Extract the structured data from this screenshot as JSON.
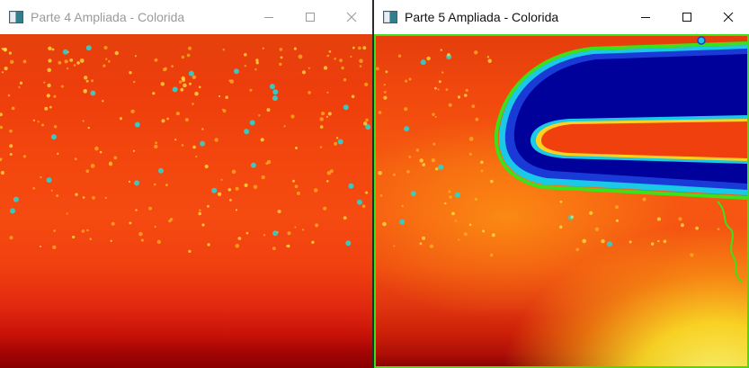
{
  "windows": [
    {
      "id": "left",
      "title": "Parte 4 Ampliada - Colorida",
      "active": false,
      "icon": "app-window-icon",
      "controls": [
        "minimize-icon",
        "maximize-icon",
        "close-icon"
      ]
    },
    {
      "id": "right",
      "title": "Parte 5 Ampliada - Colorida",
      "active": true,
      "icon": "app-window-icon",
      "controls": [
        "minimize-icon",
        "maximize-icon",
        "close-icon"
      ]
    }
  ],
  "colors": {
    "inactive_title": "#9a9a9a",
    "active_title": "#111111",
    "contour_green": "#3ee01a",
    "bubble_dark_blue": "#00009a",
    "bubble_blue": "#1a3ad8",
    "bubble_cyan": "#19c9e6",
    "heat_red": "#f04a10",
    "heat_yellow": "#ffee30"
  }
}
